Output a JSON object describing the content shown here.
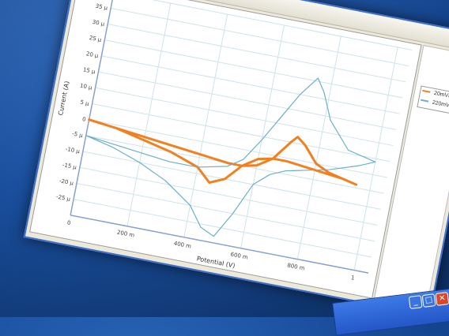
{
  "toolbar": {
    "icons": [
      "zoom-in-icon",
      "zoom-out-icon",
      "zoom-fit-icon",
      "pointer-icon",
      "chart-icon"
    ]
  },
  "legend": {
    "items": [
      {
        "label": "20mV/s",
        "color": "#f08020"
      },
      {
        "label": "220mV/s",
        "color": "#6bb0c8"
      }
    ]
  },
  "chart_data": {
    "type": "line",
    "title": "",
    "xlabel": "Potential (V)",
    "ylabel": "Current (A)",
    "xlim": [
      0,
      1.05
    ],
    "ylim": [
      -30,
      40
    ],
    "x_ticks": [
      "0",
      "200 m",
      "400 m",
      "600 m",
      "800 m",
      "1"
    ],
    "x_tick_values": [
      0,
      0.2,
      0.4,
      0.6,
      0.8,
      1.0
    ],
    "y_ticks": [
      "40 µ",
      "35 µ",
      "30 µ",
      "25 µ",
      "20 µ",
      "15 µ",
      "10 µ",
      "5 µ",
      "0",
      "-5 µ",
      "-10 µ",
      "-15 µ",
      "-20 µ",
      "-25 µ"
    ],
    "y_tick_values": [
      40,
      35,
      30,
      25,
      20,
      15,
      10,
      5,
      0,
      -5,
      -10,
      -15,
      -20,
      -25
    ],
    "grid": true,
    "series": [
      {
        "name": "20mV/s",
        "color": "#f08020",
        "x": [
          0.0,
          0.1,
          0.2,
          0.3,
          0.4,
          0.5,
          0.55,
          0.6,
          0.65,
          0.7,
          0.72,
          0.75,
          0.8,
          0.85,
          0.9,
          0.95,
          0.9,
          0.8,
          0.7,
          0.65,
          0.6,
          0.55,
          0.5,
          0.45,
          0.4,
          0.3,
          0.2,
          0.1,
          0.0
        ],
        "y": [
          0,
          -1,
          -2,
          -3,
          -4,
          -5,
          -5,
          -4,
          -1,
          5,
          7,
          5,
          0,
          -2,
          -3,
          -4,
          -3,
          -2,
          -1,
          -1,
          -2,
          -5,
          -10,
          -12,
          -8,
          -5,
          -3,
          -1,
          0
        ]
      },
      {
        "name": "220mV/s",
        "color": "#6bb0c8",
        "x": [
          0.0,
          0.1,
          0.2,
          0.3,
          0.4,
          0.5,
          0.55,
          0.6,
          0.65,
          0.7,
          0.75,
          0.78,
          0.82,
          0.9,
          1.0,
          0.95,
          0.85,
          0.75,
          0.7,
          0.65,
          0.6,
          0.55,
          0.5,
          0.45,
          0.4,
          0.3,
          0.2,
          0.1,
          0.0
        ],
        "y": [
          -5,
          -6,
          -7,
          -8,
          -8,
          -6,
          -3,
          4,
          12,
          20,
          26,
          22,
          14,
          6,
          4,
          2,
          -1,
          -3,
          -4,
          -6,
          -10,
          -20,
          -28,
          -26,
          -20,
          -14,
          -10,
          -7,
          -5
        ]
      }
    ]
  }
}
